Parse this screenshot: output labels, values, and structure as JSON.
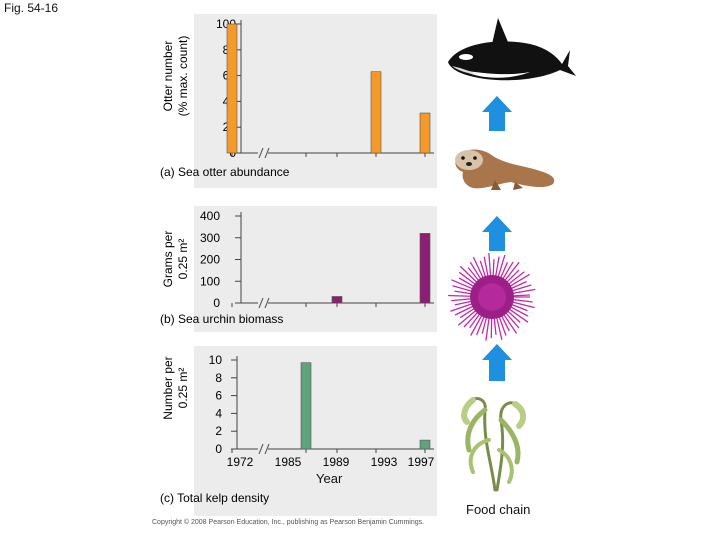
{
  "figure_label": "Fig. 54-16",
  "food_chain_label": "Food chain",
  "copyright": "Copyright © 2008 Pearson Education, Inc., publishing as Pearson Benjamin Cummings.",
  "colors": {
    "panel_bg": "#ececec",
    "otter_bar": "#f59a2a",
    "urchin_bar": "#8c1f74",
    "kelp_bar": "#5ea37b",
    "arrow": "#1f8fe0"
  },
  "icons": [
    "orca-icon",
    "sea-otter-icon",
    "sea-urchin-icon",
    "kelp-icon"
  ],
  "chart_data": [
    {
      "type": "bar",
      "title": "(a) Sea otter abundance",
      "ylabel": [
        "Otter number",
        "(% max. count)"
      ],
      "x": [
        1972,
        1985,
        1989,
        1993,
        1997
      ],
      "values": [
        100,
        null,
        null,
        63,
        31
      ],
      "yticks": [
        "0",
        "20",
        "40",
        "60",
        "80",
        "100"
      ],
      "ylim": [
        0,
        100
      ],
      "xlim": [
        1972,
        1997
      ],
      "axis_break_after": 1972,
      "color": "#f59a2a"
    },
    {
      "type": "bar",
      "title": "(b) Sea urchin biomass",
      "ylabel": [
        "Grams per",
        "0.25 m²"
      ],
      "x": [
        1972,
        1985,
        1989,
        1993,
        1997
      ],
      "values": [
        null,
        null,
        30,
        null,
        320
      ],
      "yticks": [
        "0",
        "100",
        "200",
        "300",
        "400"
      ],
      "ylim": [
        0,
        400
      ],
      "xlim": [
        1972,
        1997
      ],
      "axis_break_after": 1972,
      "color": "#8c1f74"
    },
    {
      "type": "bar",
      "title": "(c) Total kelp density",
      "ylabel": [
        "Number per",
        "0.25 m²"
      ],
      "xlabel": "Year",
      "x": [
        1972,
        1985,
        1989,
        1993,
        1997
      ],
      "xticks": [
        "1972",
        "1985",
        "1989",
        "1993",
        "1997"
      ],
      "values": [
        null,
        9.7,
        null,
        null,
        1
      ],
      "yticks": [
        "0",
        "2",
        "4",
        "6",
        "8",
        "10"
      ],
      "ylim": [
        0,
        10
      ],
      "xlim": [
        1972,
        1997
      ],
      "axis_break_after": 1972,
      "color": "#5ea37b"
    }
  ]
}
